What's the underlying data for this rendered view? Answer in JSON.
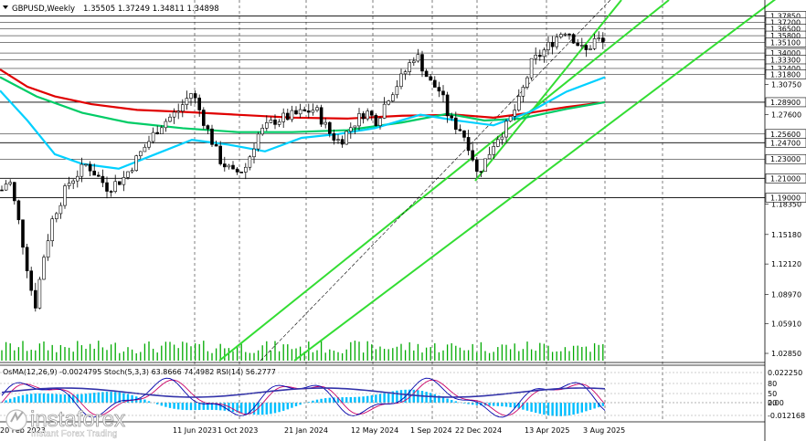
{
  "header": {
    "symbol_line": "GBPUSD,Weekly",
    "ohlc": "1.35505 1.37249 1.34811 1.34898"
  },
  "chart_data": {
    "type": "candlestick",
    "ylim": [
      1.02,
      1.395
    ],
    "x_ticks": [
      "20 Feb 2023",
      "11 Jun 2023",
      "1 Oct 2023",
      "21 Jan 2024",
      "12 May 2024",
      "1 Sep 2024",
      "22 Dec 2024",
      "13 Apr 2025",
      "3 Aug 2025"
    ],
    "y_ticks": [
      "1.30750",
      "1.27600",
      "1.18350",
      "1.15180",
      "1.12120",
      "1.08970",
      "1.05910",
      "1.02850"
    ],
    "levels": [
      "1.37850",
      "1.37200",
      "1.36500",
      "1.35800",
      "1.35100",
      "1.34000",
      "1.33300",
      "1.32400",
      "1.31800",
      "1.28900",
      "1.25600",
      "1.24700",
      "1.23000",
      "1.21000",
      "1.19000"
    ],
    "highlight_levels": [
      "1.37850",
      "1.28900",
      "1.24700",
      "1.21000",
      "1.19000"
    ],
    "colors": {
      "candles": "#000000",
      "ema_red": "#e00000",
      "ema_green": "#00cc66",
      "ema_cyan": "#00d0ff",
      "channel": "#33dd33",
      "volume": "#00aa00",
      "osma": "#00bfff",
      "stoch_main": "#0000aa",
      "stoch_signal": "#cc0066",
      "rsi": "#3333aa"
    }
  },
  "indicator": {
    "label": "OsMA(12,26,9) -0.0024795  Stoch(5,3,3) 63.8666 74.4982  RSI(14) 56.2777",
    "scale": [
      "0.022250",
      "80",
      "50",
      "20",
      "0.00",
      "-0.012168"
    ]
  },
  "watermark": {
    "brand": "instaforex",
    "tagline": "Instant Forex Trading"
  }
}
